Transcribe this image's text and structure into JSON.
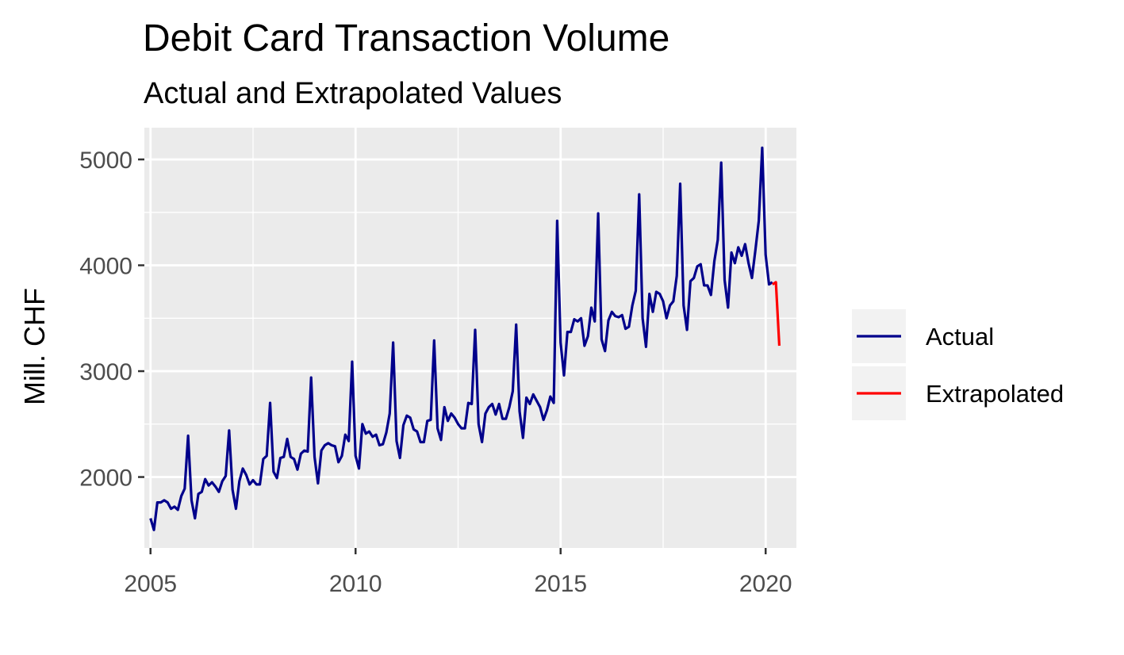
{
  "chart_data": {
    "type": "line",
    "title": "Debit Card Transaction Volume",
    "subtitle": "Actual and Extrapolated Values",
    "xlabel": "",
    "ylabel": "Mill. CHF",
    "xlim": [
      2004.85,
      2020.75
    ],
    "ylim": [
      1330,
      5300
    ],
    "x_ticks": [
      2005,
      2010,
      2015,
      2020
    ],
    "x_tick_labels": [
      "2005",
      "2010",
      "2015",
      "2020"
    ],
    "y_ticks": [
      2000,
      3000,
      4000,
      5000
    ],
    "y_tick_labels": [
      "2000",
      "3000",
      "4000",
      "5000"
    ],
    "grid": true,
    "legend_position": "right",
    "colors": {
      "panel": "#ebebeb",
      "grid": "#ffffff",
      "actual": "#00008b",
      "extrapolated": "#ff0000"
    },
    "series": [
      {
        "name": "Actual",
        "color": "#00008b",
        "x_start": 2005.0,
        "x_step": 0.08333,
        "values": [
          1610,
          1500,
          1760,
          1760,
          1780,
          1760,
          1700,
          1720,
          1690,
          1820,
          1890,
          2390,
          1780,
          1610,
          1840,
          1860,
          1980,
          1920,
          1950,
          1910,
          1860,
          1960,
          2010,
          2440,
          1880,
          1700,
          1960,
          2080,
          2020,
          1930,
          1970,
          1930,
          1930,
          2170,
          2200,
          2700,
          2050,
          1990,
          2180,
          2190,
          2360,
          2190,
          2170,
          2070,
          2220,
          2250,
          2240,
          2940,
          2190,
          1940,
          2250,
          2300,
          2320,
          2300,
          2290,
          2140,
          2200,
          2400,
          2340,
          3090,
          2200,
          2080,
          2500,
          2410,
          2430,
          2380,
          2400,
          2300,
          2310,
          2420,
          2600,
          3270,
          2340,
          2180,
          2490,
          2580,
          2560,
          2450,
          2430,
          2330,
          2330,
          2530,
          2540,
          3290,
          2460,
          2350,
          2660,
          2530,
          2600,
          2560,
          2500,
          2460,
          2460,
          2700,
          2690,
          3390,
          2500,
          2330,
          2600,
          2660,
          2690,
          2590,
          2690,
          2550,
          2550,
          2660,
          2810,
          3440,
          2620,
          2370,
          2750,
          2690,
          2780,
          2720,
          2660,
          2540,
          2630,
          2760,
          2700,
          4420,
          3270,
          2960,
          3370,
          3370,
          3490,
          3470,
          3500,
          3240,
          3330,
          3600,
          3470,
          4490,
          3300,
          3190,
          3480,
          3560,
          3520,
          3510,
          3530,
          3400,
          3420,
          3620,
          3760,
          4670,
          3500,
          3230,
          3730,
          3560,
          3750,
          3730,
          3660,
          3500,
          3620,
          3660,
          3900,
          4770,
          3620,
          3390,
          3850,
          3880,
          3990,
          4010,
          3810,
          3810,
          3720,
          4040,
          4240,
          4970,
          3860,
          3600,
          4120,
          4020,
          4170,
          4090,
          4200,
          4020,
          3880,
          4140,
          4420,
          5110,
          4100,
          3820,
          3840
        ]
      },
      {
        "name": "Extrapolated",
        "color": "#ff0000",
        "x_start": 2020.1667,
        "x_step": 0.08333,
        "values": [
          3820,
          3840,
          3240
        ]
      }
    ]
  }
}
